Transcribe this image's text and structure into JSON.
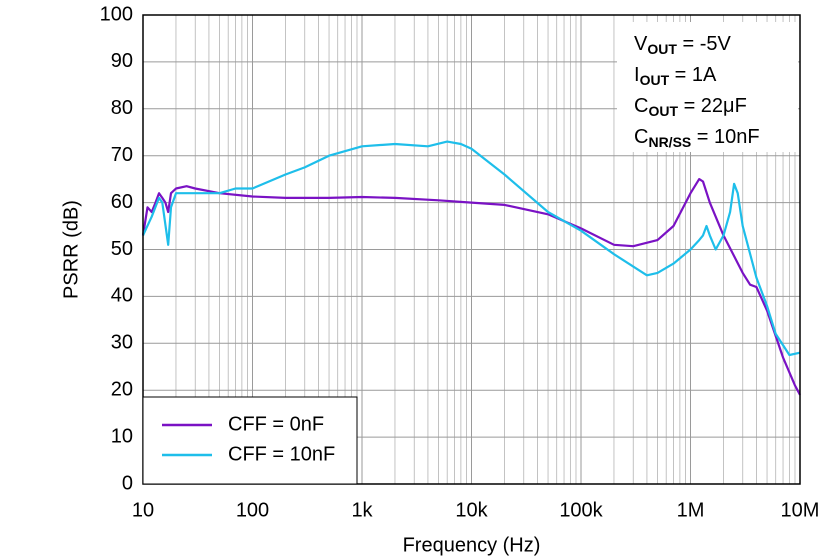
{
  "chart_data": {
    "type": "line",
    "x_label": "Frequency (Hz)",
    "y_label": "PSRR (dB)",
    "xscale": "log",
    "grid": true,
    "legend": "lower left",
    "xlim": [
      10,
      10000000
    ],
    "ylim": [
      0,
      100
    ],
    "xticks": [
      10,
      100,
      {
        "value": 1000,
        "label": "1k"
      },
      {
        "value": 10000,
        "label": "10k"
      },
      {
        "value": 100000,
        "label": "100k"
      },
      {
        "value": 1000000,
        "label": "1M"
      },
      {
        "value": 10000000,
        "label": "10M"
      }
    ],
    "yticks": [
      0,
      10,
      20,
      30,
      40,
      50,
      60,
      70,
      80,
      90,
      100
    ],
    "annotations": [
      [
        {
          "text": "V"
        },
        {
          "text": "OUT",
          "sub": true
        },
        {
          "text": " = -5V"
        }
      ],
      [
        {
          "text": "I"
        },
        {
          "text": "OUT",
          "sub": true
        },
        {
          "text": " = 1A"
        }
      ],
      [
        {
          "text": "C"
        },
        {
          "text": "OUT",
          "sub": true
        },
        {
          "text": " = 22μF"
        }
      ],
      [
        {
          "text": "C"
        },
        {
          "text": "NR/SS",
          "sub": true
        },
        {
          "text": " = 10nF"
        }
      ]
    ],
    "series": [
      {
        "name": "CFF = 0nF",
        "color": "#7a12c4",
        "x": [
          10,
          11,
          12,
          13,
          14,
          15,
          16,
          17,
          18,
          20,
          25,
          30,
          50,
          100,
          200,
          500,
          1000,
          2000,
          5000,
          10000,
          20000,
          50000,
          100000,
          200000,
          300000,
          500000,
          700000,
          1000000,
          1200000,
          1300000,
          1500000,
          2000000,
          3000000,
          3500000,
          4000000,
          5000000,
          7000000,
          9000000,
          10000000
        ],
        "values": [
          53,
          59,
          58,
          60,
          62,
          61,
          60,
          58,
          62,
          63,
          63.5,
          63,
          62,
          61.3,
          61,
          61,
          61.2,
          61,
          60.5,
          60,
          59.5,
          57.5,
          54.5,
          51,
          50.7,
          52,
          55,
          62,
          65,
          64.5,
          60,
          53,
          45,
          42.5,
          42,
          37,
          27,
          21,
          19
        ]
      },
      {
        "name": "CFF = 10nF",
        "color": "#1ebeea",
        "x": [
          10,
          12,
          14,
          15,
          17,
          18,
          20,
          30,
          50,
          70,
          100,
          200,
          300,
          500,
          1000,
          2000,
          4000,
          6000,
          8000,
          10000,
          20000,
          50000,
          100000,
          200000,
          400000,
          500000,
          700000,
          1000000,
          1200000,
          1300000,
          1400000,
          1500000,
          1700000,
          2000000,
          2300000,
          2500000,
          2700000,
          3000000,
          4000000,
          5000000,
          6000000,
          8000000,
          10000000
        ],
        "values": [
          53,
          57,
          61,
          60,
          51,
          59,
          62,
          62,
          62,
          63,
          63,
          66,
          67.5,
          70,
          72,
          72.5,
          72,
          73,
          72.5,
          71.5,
          66,
          58,
          54,
          49,
          44.5,
          45,
          47,
          50,
          52,
          53,
          55,
          53,
          50,
          53,
          58,
          64,
          62,
          55,
          44,
          38,
          32,
          27.5,
          28
        ]
      }
    ]
  }
}
